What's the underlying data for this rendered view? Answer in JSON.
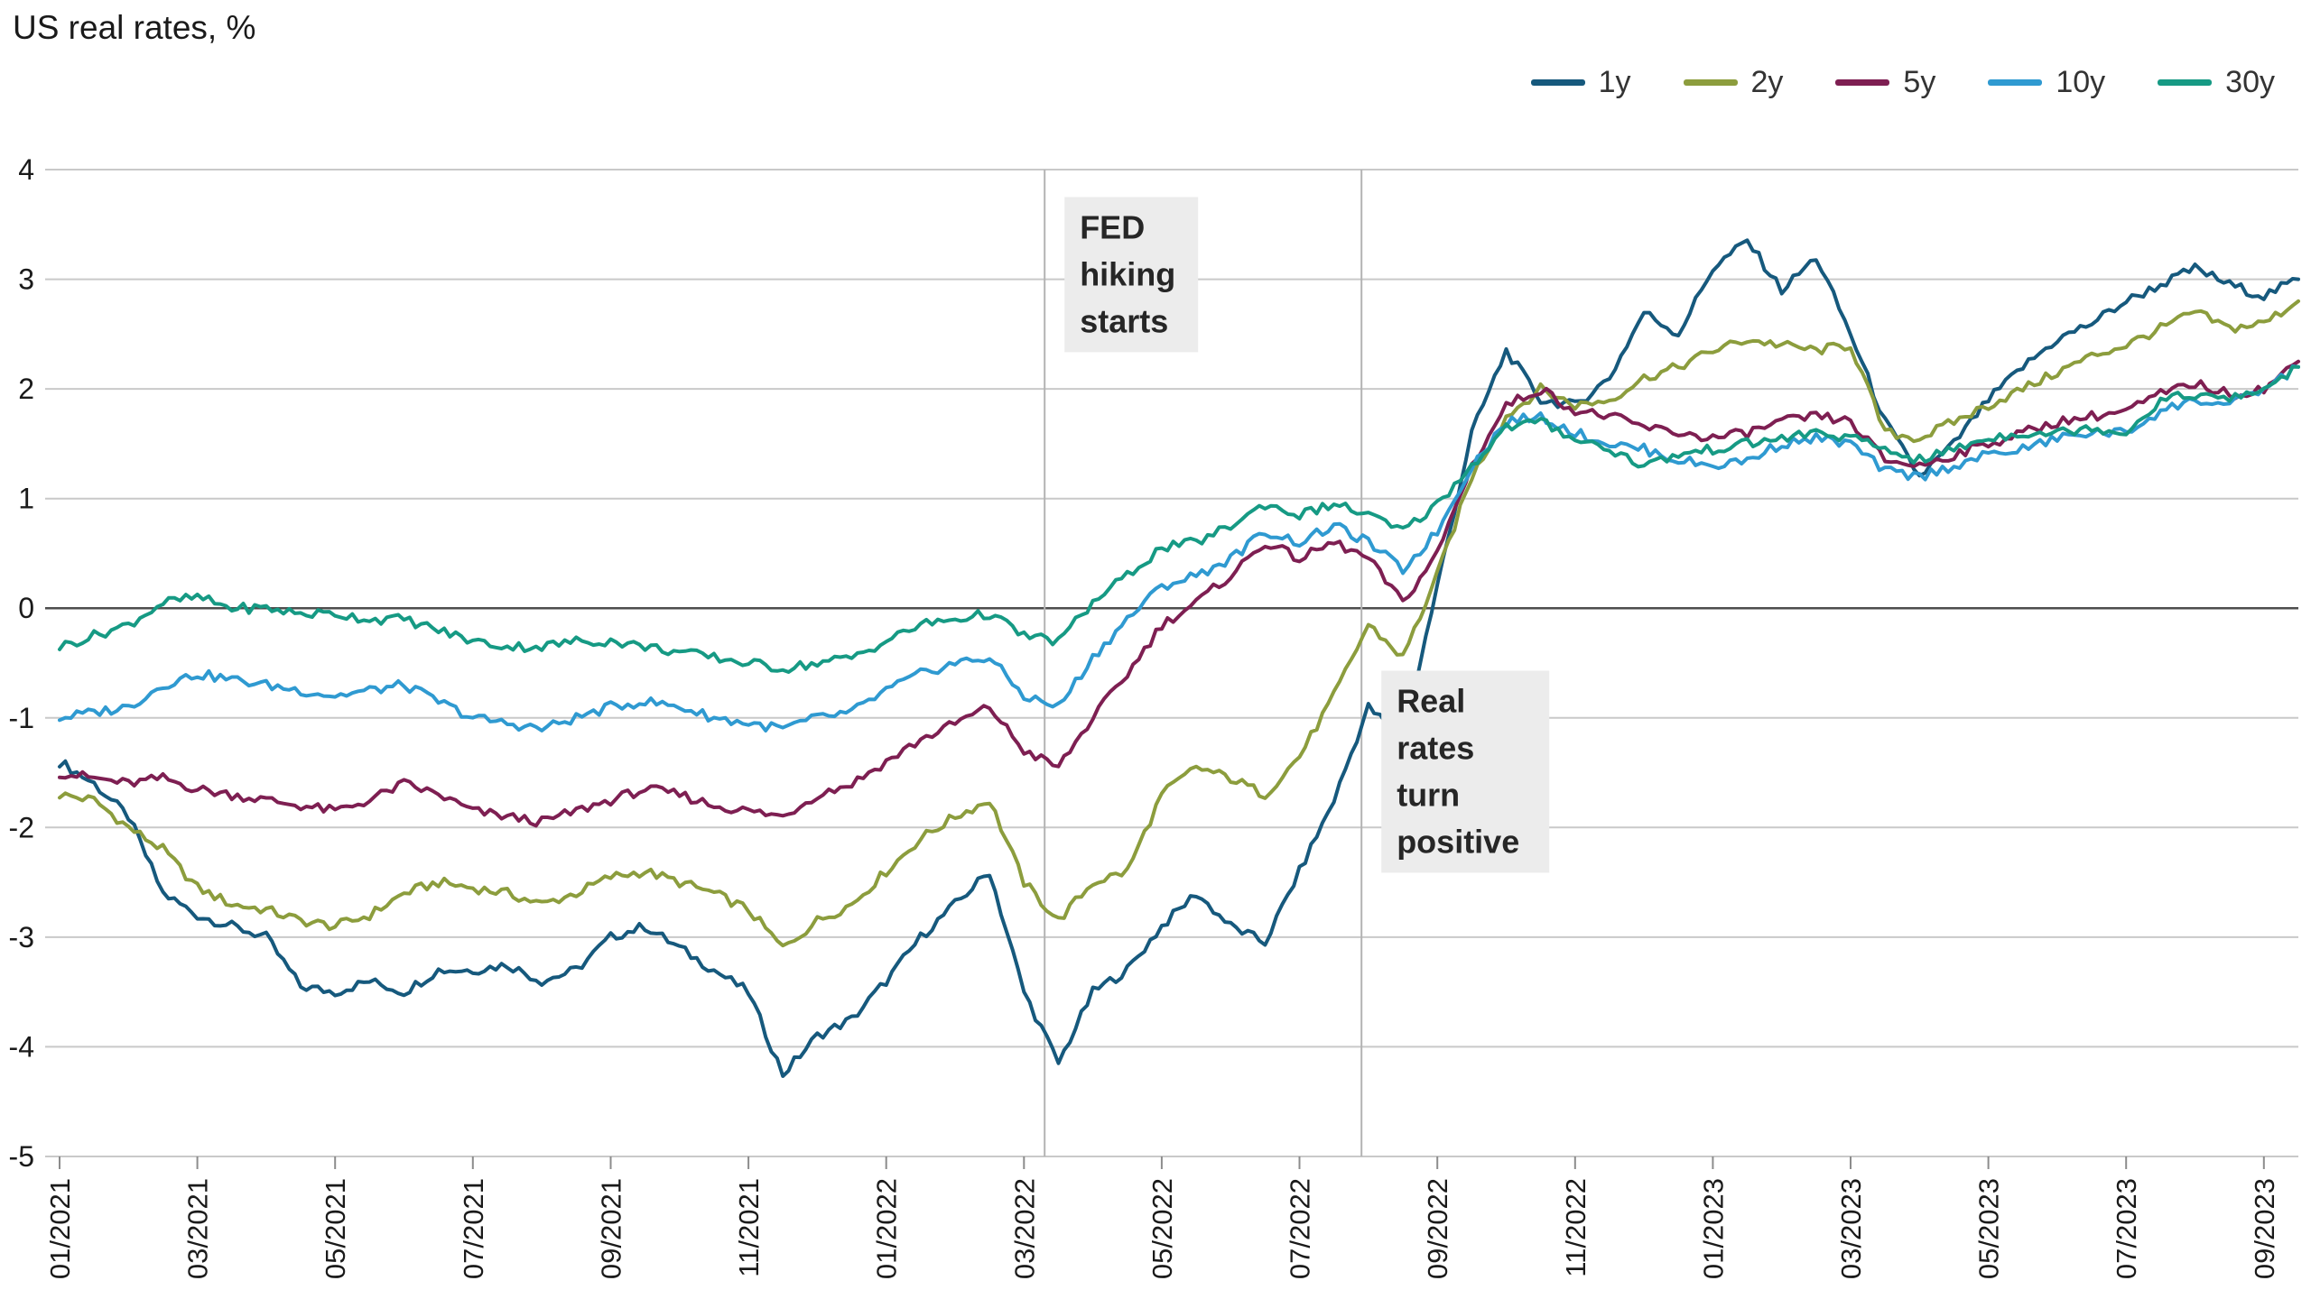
{
  "header": {
    "title": "US real rates, %"
  },
  "chart_data": {
    "type": "line",
    "title": "US real rates, %",
    "xlabel": "",
    "ylabel": "US real rates, %",
    "xlim": [
      0,
      32.5
    ],
    "ylim": [
      -5,
      4
    ],
    "y_ticks": [
      4,
      3,
      2,
      1,
      0,
      -1,
      -2,
      -3,
      -4,
      -5
    ],
    "x_start": 0,
    "x_step": 0.5,
    "x_unit": "months since 01/2021, values sampled twice per month",
    "x_tick_positions": [
      0,
      2,
      4,
      6,
      8,
      10,
      12,
      14,
      16,
      18,
      20,
      22,
      24,
      26,
      28,
      30,
      32
    ],
    "x_tick_labels": [
      "01/2021",
      "03/2021",
      "05/2021",
      "07/2021",
      "09/2021",
      "11/2021",
      "01/2022",
      "03/2022",
      "05/2022",
      "07/2022",
      "09/2022",
      "11/2022",
      "01/2023",
      "03/2023",
      "05/2023",
      "07/2023",
      "09/2023"
    ],
    "grid": "horizontal gridlines at integers, zero line emphasized",
    "legend_position": "top-right",
    "series": [
      {
        "name": "1y",
        "color": "#16597d",
        "values": [
          -1.4,
          -1.6,
          -1.9,
          -2.6,
          -2.8,
          -2.9,
          -3.0,
          -3.45,
          -3.5,
          -3.4,
          -3.5,
          -3.3,
          -3.3,
          -3.25,
          -3.4,
          -3.3,
          -3.0,
          -2.9,
          -3.1,
          -3.3,
          -3.5,
          -4.25,
          -3.9,
          -3.75,
          -3.4,
          -3.0,
          -2.7,
          -2.4,
          -3.5,
          -4.15,
          -3.5,
          -3.3,
          -2.9,
          -2.6,
          -2.9,
          -3.05,
          -2.4,
          -1.75,
          -0.9,
          -1.2,
          0.2,
          1.6,
          2.35,
          1.9,
          1.85,
          2.1,
          2.7,
          2.5,
          3.1,
          3.35,
          2.9,
          3.2,
          2.5,
          1.7,
          1.2,
          1.5,
          1.9,
          2.2,
          2.45,
          2.6,
          2.8,
          2.95,
          3.1,
          2.95,
          2.85,
          3.0
        ]
      },
      {
        "name": "2y",
        "color": "#8c9d3d",
        "values": [
          -1.7,
          -1.75,
          -2.0,
          -2.2,
          -2.55,
          -2.7,
          -2.75,
          -2.85,
          -2.9,
          -2.8,
          -2.6,
          -2.5,
          -2.55,
          -2.6,
          -2.7,
          -2.6,
          -2.45,
          -2.4,
          -2.5,
          -2.6,
          -2.75,
          -3.1,
          -2.85,
          -2.7,
          -2.4,
          -2.1,
          -1.9,
          -1.75,
          -2.5,
          -2.85,
          -2.5,
          -2.4,
          -1.7,
          -1.45,
          -1.55,
          -1.7,
          -1.35,
          -0.8,
          -0.15,
          -0.45,
          0.3,
          1.2,
          1.75,
          2.0,
          1.85,
          1.9,
          2.1,
          2.2,
          2.35,
          2.45,
          2.4,
          2.35,
          2.4,
          1.6,
          1.55,
          1.7,
          1.85,
          2.0,
          2.15,
          2.3,
          2.4,
          2.55,
          2.7,
          2.55,
          2.6,
          2.8
        ]
      },
      {
        "name": "5y",
        "color": "#7e1f52",
        "values": [
          -1.5,
          -1.55,
          -1.6,
          -1.55,
          -1.65,
          -1.7,
          -1.75,
          -1.8,
          -1.85,
          -1.75,
          -1.6,
          -1.7,
          -1.85,
          -1.9,
          -1.95,
          -1.85,
          -1.75,
          -1.65,
          -1.7,
          -1.8,
          -1.85,
          -1.9,
          -1.7,
          -1.6,
          -1.4,
          -1.2,
          -1.05,
          -0.9,
          -1.3,
          -1.45,
          -1.0,
          -0.6,
          -0.15,
          0.05,
          0.3,
          0.6,
          0.45,
          0.6,
          0.45,
          0.05,
          0.5,
          1.3,
          1.85,
          2.0,
          1.8,
          1.75,
          1.65,
          1.6,
          1.55,
          1.6,
          1.7,
          1.75,
          1.7,
          1.35,
          1.3,
          1.4,
          1.5,
          1.6,
          1.7,
          1.75,
          1.8,
          1.95,
          2.05,
          1.95,
          2.0,
          2.25
        ]
      },
      {
        "name": "10y",
        "color": "#2f9ad1",
        "values": [
          -1.0,
          -0.95,
          -0.9,
          -0.7,
          -0.6,
          -0.65,
          -0.7,
          -0.75,
          -0.8,
          -0.75,
          -0.7,
          -0.85,
          -1.0,
          -1.05,
          -1.1,
          -1.0,
          -0.9,
          -0.85,
          -0.9,
          -1.0,
          -1.05,
          -1.1,
          -1.0,
          -0.95,
          -0.75,
          -0.6,
          -0.5,
          -0.45,
          -0.8,
          -0.9,
          -0.45,
          -0.1,
          0.2,
          0.3,
          0.45,
          0.7,
          0.6,
          0.75,
          0.6,
          0.35,
          0.7,
          1.3,
          1.7,
          1.75,
          1.6,
          1.5,
          1.45,
          1.35,
          1.3,
          1.35,
          1.5,
          1.55,
          1.5,
          1.25,
          1.2,
          1.3,
          1.4,
          1.45,
          1.55,
          1.6,
          1.6,
          1.8,
          1.9,
          1.85,
          2.0,
          2.2
        ]
      },
      {
        "name": "30y",
        "color": "#169a84",
        "values": [
          -0.35,
          -0.25,
          -0.15,
          0.05,
          0.1,
          0.0,
          0.0,
          -0.05,
          -0.05,
          -0.1,
          -0.1,
          -0.2,
          -0.3,
          -0.35,
          -0.35,
          -0.3,
          -0.3,
          -0.35,
          -0.4,
          -0.45,
          -0.5,
          -0.55,
          -0.5,
          -0.45,
          -0.3,
          -0.15,
          -0.1,
          -0.05,
          -0.25,
          -0.3,
          0.05,
          0.3,
          0.55,
          0.6,
          0.75,
          0.95,
          0.85,
          0.95,
          0.85,
          0.7,
          0.95,
          1.3,
          1.65,
          1.7,
          1.55,
          1.45,
          1.3,
          1.4,
          1.45,
          1.5,
          1.55,
          1.6,
          1.55,
          1.45,
          1.35,
          1.45,
          1.55,
          1.6,
          1.6,
          1.65,
          1.6,
          1.9,
          1.95,
          1.9,
          2.0,
          2.2
        ]
      }
    ],
    "annotations": [
      {
        "x": 14.3,
        "label": "FED hiking starts",
        "lines": [
          "FED",
          "hiking",
          "starts"
        ],
        "label_top_y": 3.75
      },
      {
        "x": 18.9,
        "label": "Real rates turn positive",
        "lines": [
          "Real",
          "rates",
          "turn",
          "positive"
        ],
        "label_top_y": -0.57
      }
    ]
  }
}
